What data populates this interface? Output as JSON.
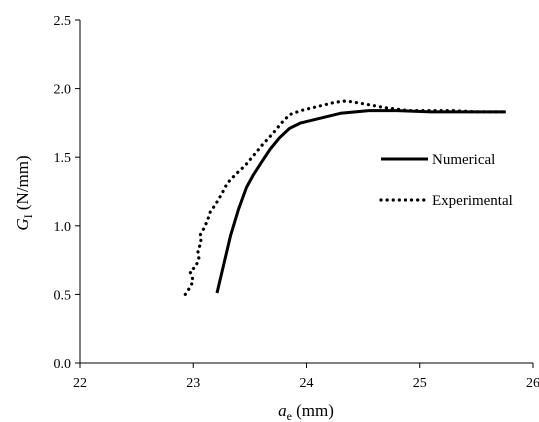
{
  "chart_data": {
    "type": "line",
    "title": "",
    "xlabel": {
      "main": "a",
      "sub": "e",
      "unit": " (mm)"
    },
    "ylabel": {
      "main": "G",
      "sub": "I",
      "unit": " (N/mm)"
    },
    "xlim": [
      22,
      26
    ],
    "ylim": [
      0,
      2.5
    ],
    "xticks": [
      22,
      23,
      24,
      25,
      26
    ],
    "yticks": [
      0.0,
      0.5,
      1.0,
      1.5,
      2.0,
      2.5
    ],
    "ytick_labels": [
      "0.0",
      "0.5",
      "1.0",
      "1.5",
      "2.0",
      "2.5"
    ],
    "grid": false,
    "legend_position": "right",
    "series": [
      {
        "name": "Numerical",
        "style": "solid",
        "color": "#000000",
        "x": [
          23.21,
          23.27,
          23.33,
          23.4,
          23.47,
          23.53,
          23.6,
          23.68,
          23.76,
          23.85,
          23.95,
          24.1,
          24.3,
          24.55,
          24.8,
          25.1,
          25.4,
          25.76
        ],
        "y": [
          0.51,
          0.72,
          0.93,
          1.12,
          1.28,
          1.37,
          1.46,
          1.56,
          1.64,
          1.71,
          1.75,
          1.78,
          1.82,
          1.84,
          1.84,
          1.83,
          1.83,
          1.83
        ]
      },
      {
        "name": "Experimental",
        "style": "dotted",
        "color": "#000000",
        "x": [
          22.93,
          22.97,
          23.0,
          22.97,
          23.02,
          23.05,
          23.04,
          23.07,
          23.06,
          23.1,
          23.13,
          23.15,
          23.2,
          23.25,
          23.3,
          23.38,
          23.46,
          23.54,
          23.62,
          23.7,
          23.78,
          23.85,
          23.95,
          24.05,
          24.15,
          24.25,
          24.35,
          24.5,
          24.7,
          24.9,
          25.1,
          25.3,
          25.5,
          25.76
        ],
        "y": [
          0.5,
          0.55,
          0.6,
          0.67,
          0.7,
          0.76,
          0.82,
          0.88,
          0.93,
          0.99,
          1.05,
          1.1,
          1.16,
          1.23,
          1.31,
          1.38,
          1.44,
          1.52,
          1.6,
          1.67,
          1.75,
          1.81,
          1.84,
          1.86,
          1.88,
          1.9,
          1.91,
          1.89,
          1.86,
          1.84,
          1.84,
          1.84,
          1.83,
          1.83
        ]
      }
    ]
  }
}
